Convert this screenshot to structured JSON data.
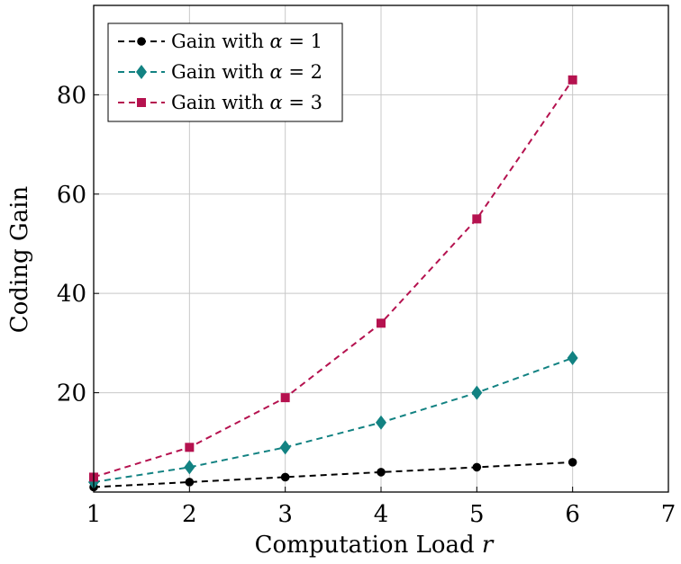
{
  "chart_data": {
    "type": "line",
    "xlabel": "Computation Load",
    "xlabel_var": "r",
    "ylabel": "Coding Gain",
    "xlim": [
      1,
      7
    ],
    "ylim": [
      0,
      98
    ],
    "x_ticks": [
      1,
      2,
      3,
      4,
      5,
      6,
      7
    ],
    "y_ticks": [
      20,
      40,
      60,
      80
    ],
    "grid": true,
    "legend_position": "top-left",
    "x": [
      1,
      2,
      3,
      4,
      5,
      6
    ],
    "series": [
      {
        "name": "Gain with α = 1",
        "name_prefix": "Gain with",
        "name_var": "α",
        "name_eq": "= 1",
        "color": "#000000",
        "marker": "circle",
        "values": [
          1,
          2,
          3,
          4,
          5,
          6
        ]
      },
      {
        "name": "Gain with α = 2",
        "name_prefix": "Gain with",
        "name_var": "α",
        "name_eq": "= 2",
        "color": "#128282",
        "marker": "diamond",
        "values": [
          2,
          5,
          9,
          14,
          20,
          27
        ]
      },
      {
        "name": "Gain with α = 3",
        "name_prefix": "Gain with",
        "name_var": "α",
        "name_eq": "= 3",
        "color": "#b5124f",
        "marker": "square",
        "values": [
          3,
          9,
          19,
          34,
          55,
          83
        ]
      }
    ]
  }
}
